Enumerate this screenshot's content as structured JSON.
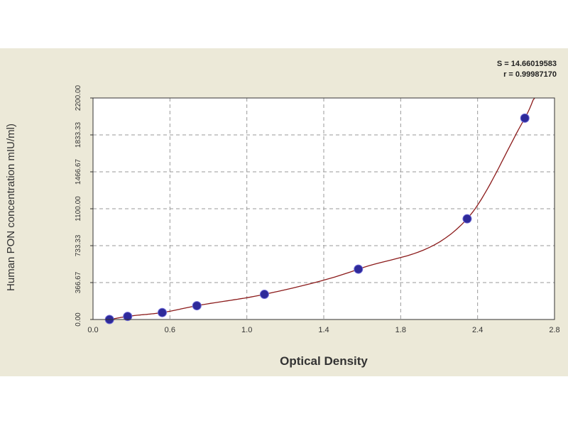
{
  "stats": {
    "line1": "S = 14.66019583",
    "line2": "r = 0.99987170"
  },
  "chart_data": {
    "type": "scatter",
    "xlabel": "Optical Density",
    "ylabel": "Human PON concentration mIU/ml)",
    "xlim": [
      0.0,
      2.8
    ],
    "ylim": [
      0,
      2200
    ],
    "x_ticks": [
      "0.0",
      "0.6",
      "1.0",
      "1.4",
      "1.8",
      "2.4",
      "2.8"
    ],
    "y_ticks": [
      "0.00",
      "366.67",
      "733.33",
      "1100.00",
      "1466.67",
      "1833.33",
      "2200.00"
    ],
    "grid": true,
    "series": [
      {
        "x": [
          0.1,
          0.21,
          0.42,
          0.63,
          1.04,
          1.61,
          2.27,
          2.62
        ],
        "y": [
          0,
          31,
          69,
          137,
          250,
          500,
          1000,
          2000
        ]
      }
    ],
    "fit_curve": true,
    "colors": {
      "point": "#2e2a9a",
      "curve": "#8b1a1a",
      "grid": "#9a9a9a",
      "plot_bg": "#ffffff",
      "panel_bg": "#ece9d8"
    }
  }
}
